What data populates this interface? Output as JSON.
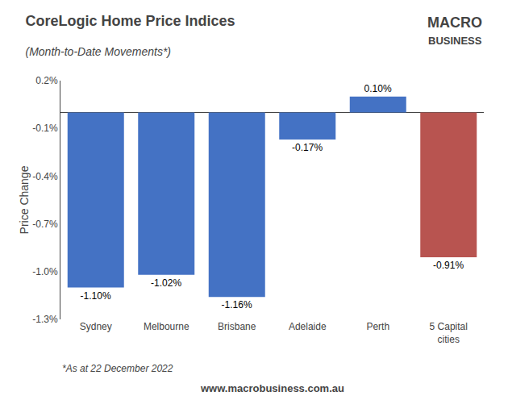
{
  "chart_data": {
    "type": "bar",
    "title": "CoreLogic Home Price Indices",
    "subtitle": "(Month-to-Date Movements*)",
    "ylabel": "Price Change",
    "categories": [
      "Sydney",
      "Melbourne",
      "Brisbane",
      "Adelaide",
      "Perth",
      "5 Capital\ncities"
    ],
    "values": [
      -1.1,
      -1.02,
      -1.16,
      -0.17,
      0.1,
      -0.91
    ],
    "value_labels": [
      "-1.10%",
      "-1.02%",
      "-1.16%",
      "-0.17%",
      "0.10%",
      "-0.91%"
    ],
    "colors": [
      "#4472C4",
      "#4472C4",
      "#4472C4",
      "#4472C4",
      "#4472C4",
      "#B85450"
    ],
    "ylim": [
      -1.3,
      0.2
    ],
    "yticks": [
      {
        "value": -1.3,
        "label": "-1.3%"
      },
      {
        "value": -1.0,
        "label": "-1.0%"
      },
      {
        "value": -0.7,
        "label": "-0.7%"
      },
      {
        "value": -0.4,
        "label": "-0.4%"
      },
      {
        "value": -0.1,
        "label": "-0.1%"
      },
      {
        "value": 0.2,
        "label": "0.2%"
      }
    ],
    "data_labels": true,
    "grid": false,
    "annotations": [
      "MACRO",
      "BUSINESS",
      "*As at 22 December 2022",
      "www.macrobusiness.com.au"
    ]
  }
}
